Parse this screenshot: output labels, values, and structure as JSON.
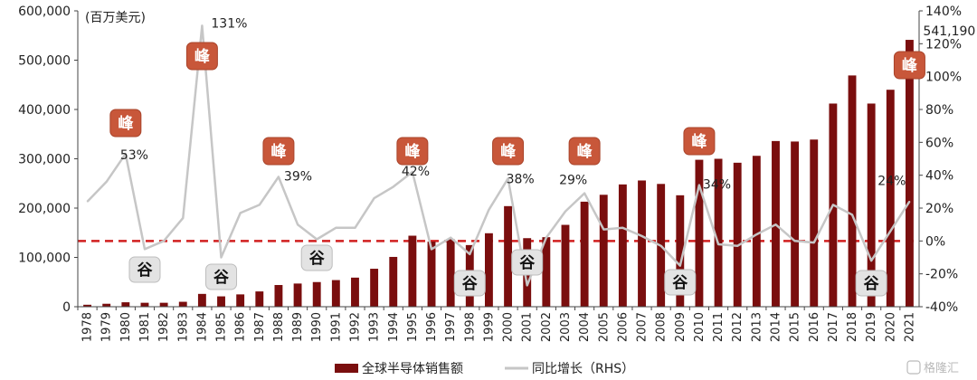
{
  "chart_data": {
    "type": "bar+line",
    "unit_label": "(百万美元)",
    "categories": [
      "1978",
      "1979",
      "1980",
      "1981",
      "1982",
      "1983",
      "1984",
      "1985",
      "1986",
      "1987",
      "1988",
      "1989",
      "1990",
      "1991",
      "1992",
      "1993",
      "1994",
      "1995",
      "1996",
      "1997",
      "1998",
      "1999",
      "2000",
      "2001",
      "2002",
      "2003",
      "2004",
      "2005",
      "2006",
      "2007",
      "2008",
      "2009",
      "2010",
      "2011",
      "2012",
      "2013",
      "2014",
      "2015",
      "2016",
      "2017",
      "2018",
      "2019",
      "2020",
      "2021"
    ],
    "bar_series": {
      "name": "全球半导体销售额",
      "color": "#7a0e0e",
      "values": [
        4000,
        6000,
        9000,
        8000,
        8000,
        10000,
        26000,
        21000,
        25000,
        31000,
        44000,
        47000,
        50000,
        54000,
        59000,
        77000,
        101000,
        144000,
        132000,
        137000,
        125000,
        149000,
        204000,
        139000,
        141000,
        166000,
        213000,
        227000,
        248000,
        256000,
        249000,
        226000,
        298000,
        300000,
        292000,
        306000,
        336000,
        335000,
        339000,
        412000,
        469000,
        412000,
        440000,
        541190
      ]
    },
    "line_series": {
      "name": "同比增长（RHS）",
      "color": "#c6c6c6",
      "values": [
        24,
        36,
        53,
        -5,
        0,
        14,
        131,
        -10,
        17,
        22,
        39,
        10,
        1,
        8,
        8,
        26,
        33,
        42,
        -5,
        2,
        -8,
        19,
        38,
        -27,
        2,
        18,
        29,
        7,
        8,
        3,
        -3,
        -15,
        34,
        -2,
        -3,
        4,
        10,
        0,
        -1,
        22,
        16,
        -12,
        6,
        24
      ]
    },
    "y_left": {
      "min": 0,
      "max": 600000,
      "ticks": [
        "0",
        "100,000",
        "200,000",
        "300,000",
        "400,000",
        "500,000",
        "600,000"
      ]
    },
    "y_right": {
      "min": -40,
      "max": 140,
      "ticks": [
        "-40%",
        "-20%",
        "0%",
        "20%",
        "40%",
        "60%",
        "80%",
        "100%",
        "120%",
        "140%"
      ]
    },
    "reference_line": {
      "value": 0,
      "axis": "right",
      "color": "#d11f1f"
    },
    "annotations": [
      {
        "year": "2021",
        "text": "541,190"
      },
      {
        "year": "1984",
        "text": "131%"
      },
      {
        "year": "1980",
        "text": "53%"
      },
      {
        "year": "1988",
        "text": "39%"
      },
      {
        "year": "1995",
        "text": "42%"
      },
      {
        "year": "2000",
        "text": "38%"
      },
      {
        "year": "2004",
        "text": "29%"
      },
      {
        "year": "2010",
        "text": "34%"
      },
      {
        "year": "2021",
        "text": "24%"
      }
    ],
    "peak_label": "峰",
    "trough_label": "谷",
    "peaks": [
      "1980",
      "1984",
      "1988",
      "1995",
      "2000",
      "2004",
      "2010",
      "2021"
    ],
    "troughs": [
      "1981",
      "1985",
      "1990",
      "1998",
      "2001",
      "2009",
      "2019"
    ],
    "legend": [
      "全球半导体销售额",
      "同比增长（RHS）"
    ],
    "peak_color": "#c8573a",
    "trough_color": "#e3e3e3"
  },
  "watermark": "格隆汇"
}
